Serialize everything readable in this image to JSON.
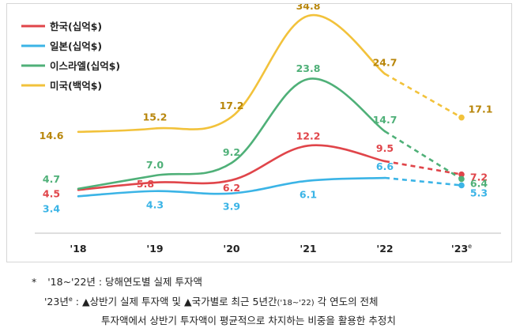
{
  "chart_data": {
    "type": "line",
    "categories": [
      "'18",
      "'19",
      "'20",
      "'21",
      "'22",
      "'23"
    ],
    "last_category_superscript": "e",
    "series": [
      {
        "name": "한국(십억$)",
        "color": "#e0454a",
        "values": [
          4.5,
          5.8,
          6.2,
          12.2,
          9.5,
          7.2
        ],
        "labels": [
          "4.5",
          "5.8",
          "6.2",
          "12.2",
          "9.5",
          "7.2"
        ]
      },
      {
        "name": "일본(십억$)",
        "color": "#3bb4e6",
        "values": [
          3.4,
          4.3,
          3.9,
          6.1,
          6.6,
          5.3
        ],
        "labels": [
          "3.4",
          "4.3",
          "3.9",
          "6.1",
          "6.6",
          "5.3"
        ]
      },
      {
        "name": "이스라엘(십억$)",
        "color": "#4fb078",
        "values": [
          4.7,
          7.0,
          9.2,
          23.8,
          14.7,
          6.4
        ],
        "labels": [
          "4.7",
          "7.0",
          "9.2",
          "23.8",
          "14.7",
          "6.4"
        ]
      },
      {
        "name": "미국(백억$)",
        "color": "#f2c23b",
        "values": [
          14.6,
          15.2,
          17.2,
          34.8,
          24.7,
          17.1
        ],
        "labels": [
          "14.6",
          "15.2",
          "17.2",
          "34.8",
          "24.7",
          "17.1"
        ],
        "label_color": "#b8860b"
      }
    ],
    "estimated_last_point": true,
    "legend_position": "top-left",
    "grid": false
  },
  "footnote": {
    "line1_prefix": "*",
    "line1": "'18~'22년 : 당해연도별 실제 투자액",
    "line2_label": "'23년",
    "line2_label_sup": "e",
    "line2_colon": ":",
    "line2_a": "▲상반기 실제 투자액 및 ▲국가별로 최근 5년간",
    "line2_small": "('18~'22)",
    "line2_b": "각 연도의 전체",
    "line3": "투자액에서 상반기 투자액이 평균적으로 차지하는 비중을 활용한 추정치"
  }
}
